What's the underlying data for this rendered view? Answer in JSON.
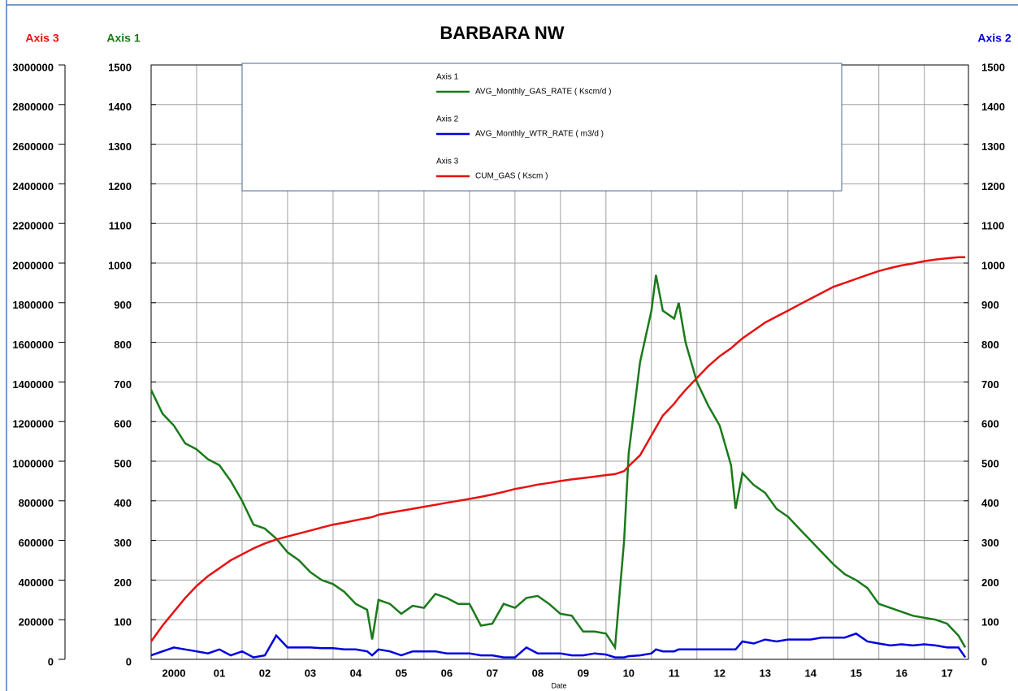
{
  "chart_data": {
    "type": "line",
    "title": "BARBARA NW",
    "x_label": "Date",
    "y_label": "Axis 1",
    "y2_label": "Axis 2",
    "y3_label": "Axis 3",
    "x": [
      2000.0,
      2000.25,
      2000.5,
      2000.75,
      2001.0,
      2001.25,
      2001.5,
      2001.75,
      2002.0,
      2002.25,
      2002.5,
      2002.75,
      2003.0,
      2003.25,
      2003.5,
      2003.75,
      2004.0,
      2004.25,
      2004.5,
      2004.75,
      2004.86,
      2005.0,
      2005.25,
      2005.5,
      2005.75,
      2006.0,
      2006.25,
      2006.5,
      2006.75,
      2007.0,
      2007.25,
      2007.5,
      2007.75,
      2008.0,
      2008.25,
      2008.5,
      2008.75,
      2009.0,
      2009.25,
      2009.5,
      2009.75,
      2010.0,
      2010.2,
      2010.4,
      2010.5,
      2010.75,
      2011.0,
      2011.1,
      2011.25,
      2011.5,
      2011.6,
      2011.75,
      2012.0,
      2012.25,
      2012.5,
      2012.75,
      2012.85,
      2013.0,
      2013.25,
      2013.5,
      2013.75,
      2014.0,
      2014.25,
      2014.5,
      2014.75,
      2015.0,
      2015.25,
      2015.5,
      2015.75,
      2016.0,
      2016.25,
      2016.5,
      2016.75,
      2017.0,
      2017.25,
      2017.5,
      2017.75,
      2017.9
    ],
    "series": [
      {
        "name": "AVG_Monthly_GAS_RATE ( Kscm/d )",
        "color": "#1a7a1a",
        "axis": "y",
        "values": [
          680,
          620,
          590,
          545,
          530,
          505,
          490,
          450,
          400,
          340,
          330,
          305,
          270,
          250,
          220,
          200,
          190,
          170,
          140,
          125,
          50,
          150,
          140,
          115,
          135,
          130,
          165,
          155,
          140,
          140,
          85,
          90,
          140,
          130,
          155,
          160,
          140,
          115,
          110,
          70,
          70,
          65,
          30,
          300,
          520,
          750,
          880,
          970,
          880,
          860,
          900,
          800,
          700,
          640,
          590,
          490,
          380,
          470,
          440,
          420,
          380,
          360,
          330,
          300,
          270,
          240,
          215,
          200,
          180,
          140,
          130,
          120,
          110,
          105,
          100,
          90,
          60,
          30
        ]
      },
      {
        "name": "AVG_Monthly_WTR_RATE ( m3/d )",
        "color": "#0000e0",
        "axis": "y2",
        "values": [
          10,
          20,
          30,
          25,
          20,
          15,
          25,
          10,
          20,
          5,
          10,
          60,
          30,
          30,
          30,
          28,
          28,
          25,
          25,
          20,
          10,
          25,
          20,
          10,
          20,
          20,
          20,
          15,
          15,
          15,
          10,
          10,
          5,
          5,
          30,
          15,
          15,
          15,
          10,
          10,
          15,
          12,
          5,
          5,
          8,
          10,
          15,
          25,
          20,
          20,
          25,
          25,
          25,
          25,
          25,
          25,
          25,
          45,
          40,
          50,
          45,
          50,
          50,
          50,
          55,
          55,
          55,
          65,
          45,
          40,
          35,
          38,
          35,
          38,
          35,
          30,
          30,
          5
        ]
      },
      {
        "name": "CUM_GAS ( Kscm )",
        "color": "#e81010",
        "axis": "y3",
        "values": [
          90000,
          170000,
          240000,
          310000,
          370000,
          420000,
          460000,
          500000,
          530000,
          560000,
          585000,
          605000,
          620000,
          635000,
          650000,
          665000,
          680000,
          690000,
          702000,
          713000,
          718000,
          730000,
          740000,
          750000,
          760000,
          770000,
          780000,
          790000,
          800000,
          810000,
          820000,
          832000,
          845000,
          860000,
          870000,
          882000,
          890000,
          900000,
          908000,
          915000,
          922000,
          930000,
          935000,
          950000,
          975000,
          1030000,
          1130000,
          1170000,
          1230000,
          1290000,
          1320000,
          1360000,
          1420000,
          1480000,
          1530000,
          1570000,
          1590000,
          1620000,
          1660000,
          1700000,
          1730000,
          1760000,
          1790000,
          1820000,
          1850000,
          1880000,
          1900000,
          1920000,
          1940000,
          1960000,
          1975000,
          1988000,
          1998000,
          2010000,
          2018000,
          2024000,
          2030000,
          2030000
        ]
      }
    ],
    "xlim": [
      2000,
      2017.97
    ],
    "xticks": [
      {
        "value": 2000,
        "label": "2000"
      },
      {
        "value": 2001,
        "label": "01"
      },
      {
        "value": 2002,
        "label": "02"
      },
      {
        "value": 2003,
        "label": "03"
      },
      {
        "value": 2004,
        "label": "04"
      },
      {
        "value": 2005,
        "label": "05"
      },
      {
        "value": 2006,
        "label": "06"
      },
      {
        "value": 2007,
        "label": "07"
      },
      {
        "value": 2008,
        "label": "08"
      },
      {
        "value": 2009,
        "label": "09"
      },
      {
        "value": 2010,
        "label": "10"
      },
      {
        "value": 2011,
        "label": "11"
      },
      {
        "value": 2012,
        "label": "12"
      },
      {
        "value": 2013,
        "label": "13"
      },
      {
        "value": 2014,
        "label": "14"
      },
      {
        "value": 2015,
        "label": "15"
      },
      {
        "value": 2016,
        "label": "16"
      },
      {
        "value": 2017,
        "label": "17"
      }
    ],
    "ylim": [
      0,
      1500
    ],
    "yticks": [
      0,
      100,
      200,
      300,
      400,
      500,
      600,
      700,
      800,
      900,
      1000,
      1100,
      1200,
      1300,
      1400,
      1500
    ],
    "y2lim": [
      0,
      1500
    ],
    "y2ticks": [
      0,
      100,
      200,
      300,
      400,
      500,
      600,
      700,
      800,
      900,
      1000,
      1100,
      1200,
      1300,
      1400,
      1500
    ],
    "y3lim": [
      0,
      3000000
    ],
    "y3ticks": [
      0,
      200000,
      400000,
      600000,
      800000,
      1000000,
      1200000,
      1400000,
      1600000,
      1800000,
      2000000,
      2200000,
      2400000,
      2600000,
      2800000,
      3000000
    ],
    "grid": true
  }
}
